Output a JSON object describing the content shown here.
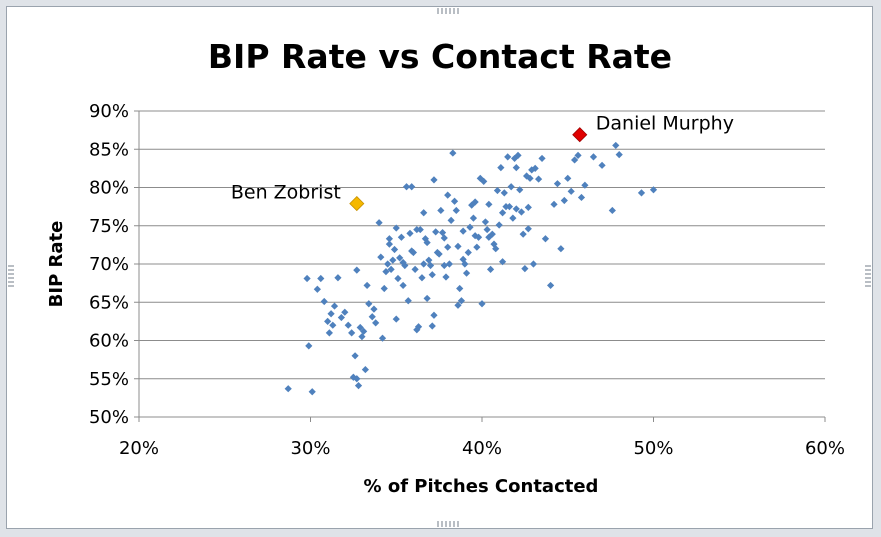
{
  "chart_data": {
    "type": "scatter",
    "title": "BIP Rate vs Contact Rate",
    "xlabel": "% of Pitches Contacted",
    "ylabel": "BIP Rate",
    "xlim": [
      0.2,
      0.6
    ],
    "ylim": [
      0.5,
      0.9
    ],
    "x_ticks": [
      0.2,
      0.3,
      0.4,
      0.5,
      0.6
    ],
    "x_tick_labels": [
      "20%",
      "30%",
      "40%",
      "50%",
      "60%"
    ],
    "y_ticks": [
      0.5,
      0.55,
      0.6,
      0.65,
      0.7,
      0.75,
      0.8,
      0.85,
      0.9
    ],
    "y_tick_labels": [
      "50%",
      "55%",
      "60%",
      "65%",
      "70%",
      "75%",
      "80%",
      "85%",
      "90%"
    ],
    "horizontal_grid": true,
    "legend": "none",
    "series": [
      {
        "marker": "diamond",
        "color": "#4f81bd",
        "points": [
          [
            0.287,
            0.537
          ],
          [
            0.301,
            0.533
          ],
          [
            0.299,
            0.593
          ],
          [
            0.298,
            0.681
          ],
          [
            0.304,
            0.667
          ],
          [
            0.306,
            0.681
          ],
          [
            0.308,
            0.651
          ],
          [
            0.31,
            0.625
          ],
          [
            0.311,
            0.61
          ],
          [
            0.312,
            0.635
          ],
          [
            0.313,
            0.62
          ],
          [
            0.314,
            0.645
          ],
          [
            0.316,
            0.682
          ],
          [
            0.318,
            0.63
          ],
          [
            0.32,
            0.637
          ],
          [
            0.322,
            0.62
          ],
          [
            0.324,
            0.61
          ],
          [
            0.325,
            0.552
          ],
          [
            0.326,
            0.58
          ],
          [
            0.327,
            0.55
          ],
          [
            0.328,
            0.541
          ],
          [
            0.329,
            0.617
          ],
          [
            0.33,
            0.605
          ],
          [
            0.331,
            0.612
          ],
          [
            0.332,
            0.562
          ],
          [
            0.333,
            0.672
          ],
          [
            0.327,
            0.692
          ],
          [
            0.334,
            0.648
          ],
          [
            0.336,
            0.631
          ],
          [
            0.337,
            0.641
          ],
          [
            0.338,
            0.623
          ],
          [
            0.34,
            0.754
          ],
          [
            0.341,
            0.709
          ],
          [
            0.342,
            0.603
          ],
          [
            0.343,
            0.668
          ],
          [
            0.344,
            0.69
          ],
          [
            0.345,
            0.7
          ],
          [
            0.346,
            0.726
          ],
          [
            0.347,
            0.693
          ],
          [
            0.348,
            0.705
          ],
          [
            0.349,
            0.719
          ],
          [
            0.35,
            0.628
          ],
          [
            0.351,
            0.681
          ],
          [
            0.352,
            0.708
          ],
          [
            0.353,
            0.735
          ],
          [
            0.354,
            0.672
          ],
          [
            0.355,
            0.698
          ],
          [
            0.356,
            0.801
          ],
          [
            0.357,
            0.652
          ],
          [
            0.358,
            0.74
          ],
          [
            0.359,
            0.801
          ],
          [
            0.36,
            0.715
          ],
          [
            0.361,
            0.693
          ],
          [
            0.362,
            0.614
          ],
          [
            0.363,
            0.618
          ],
          [
            0.364,
            0.745
          ],
          [
            0.365,
            0.682
          ],
          [
            0.366,
            0.7
          ],
          [
            0.367,
            0.733
          ],
          [
            0.368,
            0.728
          ],
          [
            0.369,
            0.705
          ],
          [
            0.37,
            0.698
          ],
          [
            0.371,
            0.686
          ],
          [
            0.372,
            0.633
          ],
          [
            0.373,
            0.742
          ],
          [
            0.374,
            0.715
          ],
          [
            0.375,
            0.713
          ],
          [
            0.376,
            0.77
          ],
          [
            0.377,
            0.741
          ],
          [
            0.378,
            0.698
          ],
          [
            0.379,
            0.683
          ],
          [
            0.38,
            0.722
          ],
          [
            0.381,
            0.7
          ],
          [
            0.382,
            0.757
          ],
          [
            0.383,
            0.845
          ],
          [
            0.384,
            0.782
          ],
          [
            0.385,
            0.77
          ],
          [
            0.386,
            0.723
          ],
          [
            0.387,
            0.668
          ],
          [
            0.388,
            0.652
          ],
          [
            0.389,
            0.743
          ],
          [
            0.39,
            0.7
          ],
          [
            0.391,
            0.688
          ],
          [
            0.392,
            0.715
          ],
          [
            0.393,
            0.748
          ],
          [
            0.394,
            0.777
          ],
          [
            0.395,
            0.76
          ],
          [
            0.396,
            0.737
          ],
          [
            0.397,
            0.722
          ],
          [
            0.398,
            0.735
          ],
          [
            0.399,
            0.812
          ],
          [
            0.4,
            0.648
          ],
          [
            0.401,
            0.808
          ],
          [
            0.402,
            0.755
          ],
          [
            0.403,
            0.745
          ],
          [
            0.404,
            0.778
          ],
          [
            0.405,
            0.693
          ],
          [
            0.406,
            0.739
          ],
          [
            0.407,
            0.726
          ],
          [
            0.408,
            0.72
          ],
          [
            0.409,
            0.796
          ],
          [
            0.41,
            0.751
          ],
          [
            0.411,
            0.826
          ],
          [
            0.412,
            0.703
          ],
          [
            0.413,
            0.793
          ],
          [
            0.414,
            0.775
          ],
          [
            0.415,
            0.84
          ],
          [
            0.416,
            0.775
          ],
          [
            0.417,
            0.801
          ],
          [
            0.418,
            0.76
          ],
          [
            0.419,
            0.838
          ],
          [
            0.42,
            0.772
          ],
          [
            0.421,
            0.842
          ],
          [
            0.422,
            0.797
          ],
          [
            0.423,
            0.768
          ],
          [
            0.424,
            0.739
          ],
          [
            0.425,
            0.694
          ],
          [
            0.426,
            0.815
          ],
          [
            0.427,
            0.746
          ],
          [
            0.428,
            0.812
          ],
          [
            0.429,
            0.823
          ],
          [
            0.43,
            0.7
          ],
          [
            0.431,
            0.825
          ],
          [
            0.433,
            0.811
          ],
          [
            0.435,
            0.838
          ],
          [
            0.437,
            0.733
          ],
          [
            0.44,
            0.672
          ],
          [
            0.442,
            0.778
          ],
          [
            0.444,
            0.805
          ],
          [
            0.446,
            0.72
          ],
          [
            0.448,
            0.783
          ],
          [
            0.45,
            0.812
          ],
          [
            0.452,
            0.795
          ],
          [
            0.454,
            0.836
          ],
          [
            0.456,
            0.842
          ],
          [
            0.458,
            0.787
          ],
          [
            0.46,
            0.803
          ],
          [
            0.465,
            0.84
          ],
          [
            0.47,
            0.829
          ],
          [
            0.476,
            0.77
          ],
          [
            0.478,
            0.855
          ],
          [
            0.48,
            0.843
          ],
          [
            0.493,
            0.793
          ],
          [
            0.5,
            0.797
          ],
          [
            0.372,
            0.81
          ],
          [
            0.38,
            0.79
          ],
          [
            0.396,
            0.781
          ],
          [
            0.366,
            0.767
          ],
          [
            0.354,
            0.702
          ],
          [
            0.362,
            0.745
          ],
          [
            0.378,
            0.734
          ],
          [
            0.389,
            0.706
          ],
          [
            0.404,
            0.735
          ],
          [
            0.412,
            0.767
          ],
          [
            0.42,
            0.826
          ],
          [
            0.427,
            0.774
          ],
          [
            0.368,
            0.655
          ],
          [
            0.371,
            0.619
          ],
          [
            0.386,
            0.646
          ],
          [
            0.346,
            0.733
          ],
          [
            0.35,
            0.747
          ],
          [
            0.359,
            0.717
          ]
        ]
      },
      {
        "name": "Ben Zobrist",
        "marker": "diamond",
        "color": "#f5b800",
        "points": [
          [
            0.327,
            0.779
          ]
        ]
      },
      {
        "name": "Daniel Murphy",
        "marker": "diamond",
        "color": "#e00000",
        "points": [
          [
            0.457,
            0.869
          ]
        ]
      }
    ],
    "annotations": [
      {
        "text": "Ben Zobrist",
        "series_index": 1,
        "side": "left"
      },
      {
        "text": "Daniel Murphy",
        "series_index": 2,
        "side": "right"
      }
    ]
  }
}
